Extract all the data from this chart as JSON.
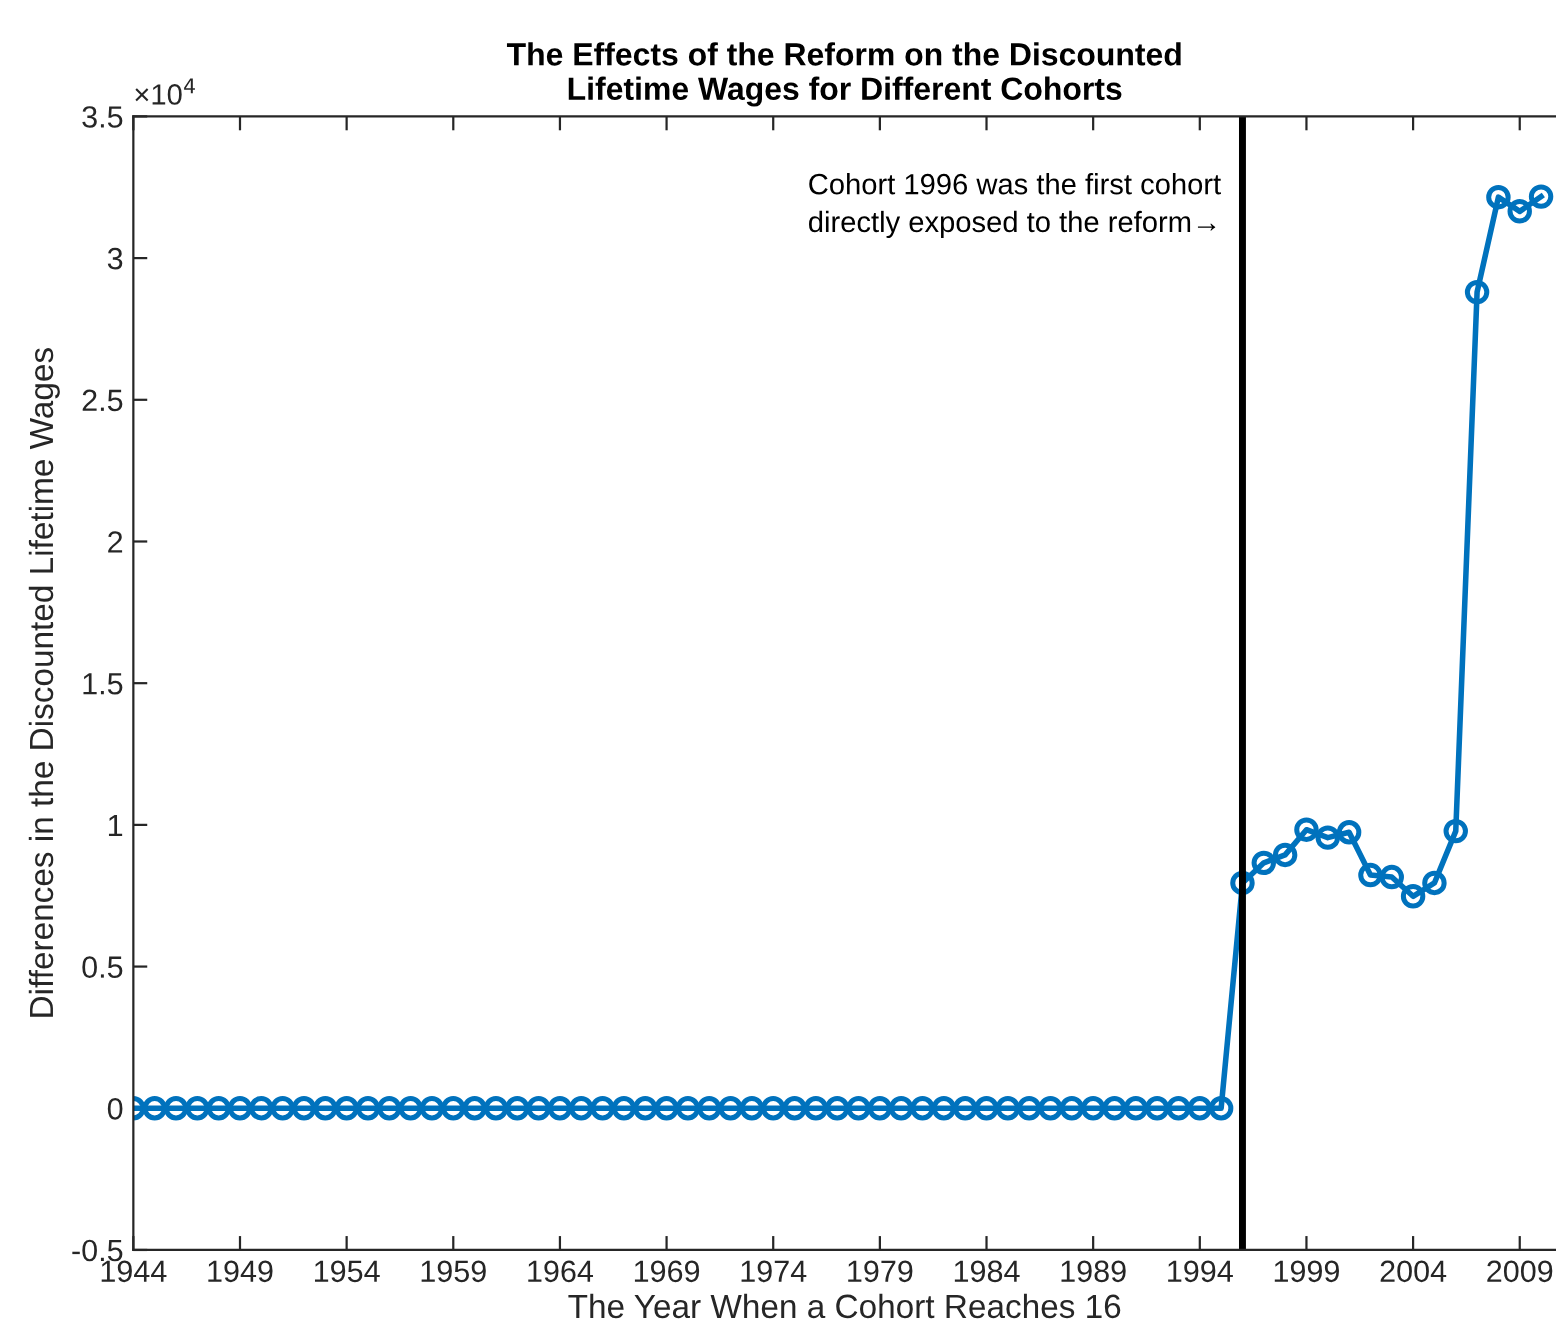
{
  "chart_data": {
    "type": "line",
    "title": "The Effects of the Reform on the Discounted\nLifetime Wages for Different Cohorts",
    "xlabel": "The Year When a Cohort Reaches 16",
    "ylabel": "Differences in the Discounted Lifetime Wages",
    "x": [
      1944,
      1945,
      1946,
      1947,
      1948,
      1949,
      1950,
      1951,
      1952,
      1953,
      1954,
      1955,
      1956,
      1957,
      1958,
      1959,
      1960,
      1961,
      1962,
      1963,
      1964,
      1965,
      1966,
      1967,
      1968,
      1969,
      1970,
      1971,
      1972,
      1973,
      1974,
      1975,
      1976,
      1977,
      1978,
      1979,
      1980,
      1981,
      1982,
      1983,
      1984,
      1985,
      1986,
      1987,
      1988,
      1989,
      1990,
      1991,
      1992,
      1993,
      1994,
      1995,
      1996,
      1997,
      1998,
      1999,
      2000,
      2001,
      2002,
      2003,
      2004,
      2005,
      2006,
      2007,
      2008,
      2009,
      2010
    ],
    "series": [
      {
        "color": "#0072bd",
        "values": [
          0,
          0,
          0,
          0,
          0,
          0,
          0,
          0,
          0,
          0,
          0,
          0,
          0,
          0,
          0,
          0,
          0,
          0,
          0,
          0,
          0,
          0,
          0,
          0,
          0,
          0,
          0,
          0,
          0,
          0,
          0,
          0,
          0,
          0,
          0,
          0,
          0,
          0,
          0,
          0,
          0,
          0,
          0,
          0,
          0,
          0,
          0,
          0,
          0,
          0,
          0,
          0,
          0.795,
          0.866,
          0.894,
          0.983,
          0.955,
          0.974,
          0.823,
          0.816,
          0.748,
          0.795,
          0.978,
          2.88,
          3.215,
          3.165,
          3.217
        ]
      }
    ],
    "marker": "circle",
    "line_style": "solid",
    "grid": false,
    "legend": false,
    "xlim": [
      1944,
      2010.7
    ],
    "xticks": [
      1944,
      1949,
      1954,
      1959,
      1964,
      1969,
      1974,
      1979,
      1984,
      1989,
      1994,
      1999,
      2004,
      2009
    ],
    "ylim": [
      -0.5,
      3.5
    ],
    "yticks": [
      -0.5,
      0,
      0.5,
      1,
      1.5,
      2,
      2.5,
      3,
      3.5
    ],
    "annotations": [
      "×10$^{4}$"
    ],
    "ref_lines": [
      {
        "axis": "x",
        "value": 1996,
        "label": "Cohort 1996 was the first cohort\ndirectly exposed to the reform→",
        "color": "#000000"
      }
    ]
  }
}
